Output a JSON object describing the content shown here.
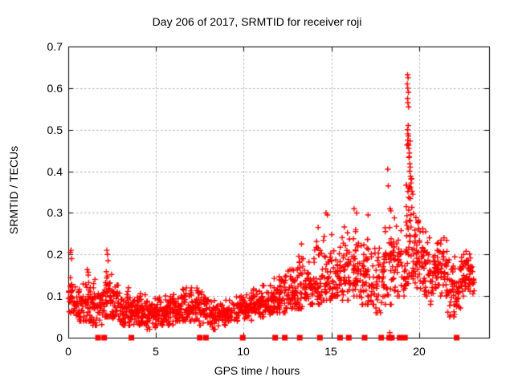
{
  "title": "Day 206 of 2017, SRMTID for receiver roji",
  "chart_data": {
    "type": "scatter",
    "title": "Day 206 of 2017, SRMTID for receiver roji",
    "xlabel": "GPS time / hours",
    "ylabel": "SRMTID / TECUs",
    "xlim": [
      0,
      24
    ],
    "ylim": [
      0,
      0.7
    ],
    "x_tick_values": [
      0,
      5,
      10,
      15,
      20
    ],
    "x_tick_labels": [
      "0",
      "5",
      "10",
      "15",
      "20"
    ],
    "y_tick_values": [
      0,
      0.1,
      0.2,
      0.3,
      0.4,
      0.5,
      0.6,
      0.7
    ],
    "y_tick_labels": [
      "0",
      "0.1",
      "0.2",
      "0.3",
      "0.4",
      "0.5",
      "0.6",
      "0.7"
    ],
    "grid": true,
    "legend": "none",
    "marker": "plus",
    "marker_color": "#ff0000",
    "grid_color": "#b0b0b0",
    "axis_color": "#000000",
    "seed": 11,
    "envelope": [
      [
        0.0,
        0.3,
        0.05,
        0.16,
        0.1,
        22
      ],
      [
        0.3,
        0.8,
        0.04,
        0.13,
        0.08,
        40
      ],
      [
        0.8,
        1.4,
        0.04,
        0.17,
        0.09,
        50
      ],
      [
        1.4,
        2.0,
        0.03,
        0.14,
        0.08,
        50
      ],
      [
        2.0,
        2.5,
        0.05,
        0.18,
        0.1,
        42
      ],
      [
        2.5,
        3.0,
        0.04,
        0.14,
        0.08,
        42
      ],
      [
        3.0,
        3.5,
        0.03,
        0.12,
        0.07,
        42
      ],
      [
        3.5,
        4.0,
        0.03,
        0.1,
        0.06,
        42
      ],
      [
        4.0,
        4.5,
        0.03,
        0.12,
        0.06,
        42
      ],
      [
        4.5,
        5.0,
        0.02,
        0.1,
        0.05,
        42
      ],
      [
        5.0,
        5.5,
        0.03,
        0.1,
        0.06,
        42
      ],
      [
        5.5,
        6.0,
        0.03,
        0.11,
        0.06,
        42
      ],
      [
        6.0,
        6.5,
        0.04,
        0.12,
        0.07,
        42
      ],
      [
        6.5,
        7.0,
        0.04,
        0.13,
        0.07,
        42
      ],
      [
        7.0,
        7.5,
        0.04,
        0.13,
        0.08,
        42
      ],
      [
        7.5,
        8.0,
        0.03,
        0.11,
        0.07,
        38
      ],
      [
        8.0,
        8.7,
        0.02,
        0.09,
        0.05,
        50
      ],
      [
        8.7,
        9.5,
        0.03,
        0.09,
        0.06,
        50
      ],
      [
        9.5,
        10.0,
        0.04,
        0.1,
        0.07,
        36
      ],
      [
        10.0,
        10.5,
        0.04,
        0.11,
        0.07,
        38
      ],
      [
        10.5,
        11.0,
        0.05,
        0.12,
        0.08,
        40
      ],
      [
        11.0,
        11.5,
        0.05,
        0.13,
        0.08,
        40
      ],
      [
        11.5,
        12.0,
        0.06,
        0.16,
        0.09,
        40
      ],
      [
        12.0,
        12.5,
        0.06,
        0.19,
        0.1,
        40
      ],
      [
        12.5,
        13.0,
        0.07,
        0.17,
        0.11,
        40
      ],
      [
        13.0,
        13.5,
        0.07,
        0.22,
        0.12,
        40
      ],
      [
        13.5,
        14.0,
        0.08,
        0.2,
        0.12,
        40
      ],
      [
        14.0,
        14.5,
        0.08,
        0.26,
        0.13,
        40
      ],
      [
        14.5,
        15.0,
        0.09,
        0.29,
        0.14,
        38
      ],
      [
        15.0,
        15.5,
        0.1,
        0.27,
        0.15,
        38
      ],
      [
        15.5,
        16.0,
        0.09,
        0.28,
        0.15,
        38
      ],
      [
        16.0,
        16.5,
        0.1,
        0.3,
        0.16,
        38
      ],
      [
        16.5,
        17.0,
        0.08,
        0.25,
        0.14,
        38
      ],
      [
        17.0,
        17.5,
        0.08,
        0.29,
        0.15,
        36
      ],
      [
        17.5,
        18.0,
        0.06,
        0.22,
        0.12,
        34
      ],
      [
        18.0,
        18.5,
        0.08,
        0.3,
        0.17,
        38
      ],
      [
        18.5,
        19.0,
        0.1,
        0.29,
        0.18,
        38
      ],
      [
        19.0,
        19.25,
        0.1,
        0.22,
        0.15,
        14
      ],
      [
        19.25,
        19.6,
        0.13,
        0.5,
        0.27,
        48
      ],
      [
        19.6,
        20.0,
        0.12,
        0.33,
        0.2,
        36
      ],
      [
        20.0,
        20.5,
        0.1,
        0.29,
        0.17,
        40
      ],
      [
        20.5,
        21.0,
        0.08,
        0.24,
        0.15,
        40
      ],
      [
        21.0,
        21.6,
        0.1,
        0.24,
        0.17,
        52
      ],
      [
        21.6,
        22.1,
        0.05,
        0.2,
        0.12,
        38
      ],
      [
        22.1,
        22.4,
        0.05,
        0.17,
        0.11,
        24
      ],
      [
        22.4,
        23.0,
        0.1,
        0.21,
        0.15,
        52
      ],
      [
        23.0,
        23.15,
        0.09,
        0.17,
        0.13,
        10
      ]
    ],
    "outliers": [
      [
        0.12,
        0.205
      ],
      [
        0.16,
        0.21
      ],
      [
        0.19,
        0.19
      ],
      [
        2.2,
        0.21
      ],
      [
        2.24,
        0.2
      ],
      [
        2.27,
        0.185
      ],
      [
        13.3,
        0.225
      ],
      [
        14.25,
        0.265
      ],
      [
        14.7,
        0.3
      ],
      [
        14.78,
        0.295
      ],
      [
        16.3,
        0.31
      ],
      [
        16.45,
        0.3
      ],
      [
        17.1,
        0.295
      ],
      [
        18.22,
        0.405
      ],
      [
        18.25,
        0.365
      ],
      [
        18.34,
        0.012
      ],
      [
        18.35,
        0.31
      ],
      [
        18.4,
        0.305
      ],
      [
        19.35,
        0.632
      ],
      [
        19.38,
        0.625
      ],
      [
        19.33,
        0.61
      ],
      [
        19.36,
        0.6
      ],
      [
        19.4,
        0.59
      ],
      [
        19.35,
        0.575
      ],
      [
        19.37,
        0.565
      ],
      [
        19.41,
        0.555
      ],
      [
        19.39,
        0.51
      ],
      [
        19.35,
        0.5
      ],
      [
        19.37,
        0.49
      ],
      [
        19.4,
        0.485
      ],
      [
        19.36,
        0.475
      ],
      [
        19.38,
        0.465
      ],
      [
        19.42,
        0.455
      ],
      [
        19.45,
        0.435
      ],
      [
        19.5,
        0.41
      ],
      [
        19.47,
        0.4
      ],
      [
        19.52,
        0.388
      ],
      [
        19.55,
        0.372
      ],
      [
        19.6,
        0.352
      ],
      [
        19.65,
        0.345
      ]
    ],
    "zero_markers": [
      1.7,
      2.05,
      3.6,
      7.5,
      7.85,
      9.95,
      11.8,
      12.35,
      13.2,
      14.35,
      15.5,
      16.0,
      16.9,
      17.85,
      18.3,
      18.45,
      18.9,
      19.2,
      22.15
    ]
  }
}
